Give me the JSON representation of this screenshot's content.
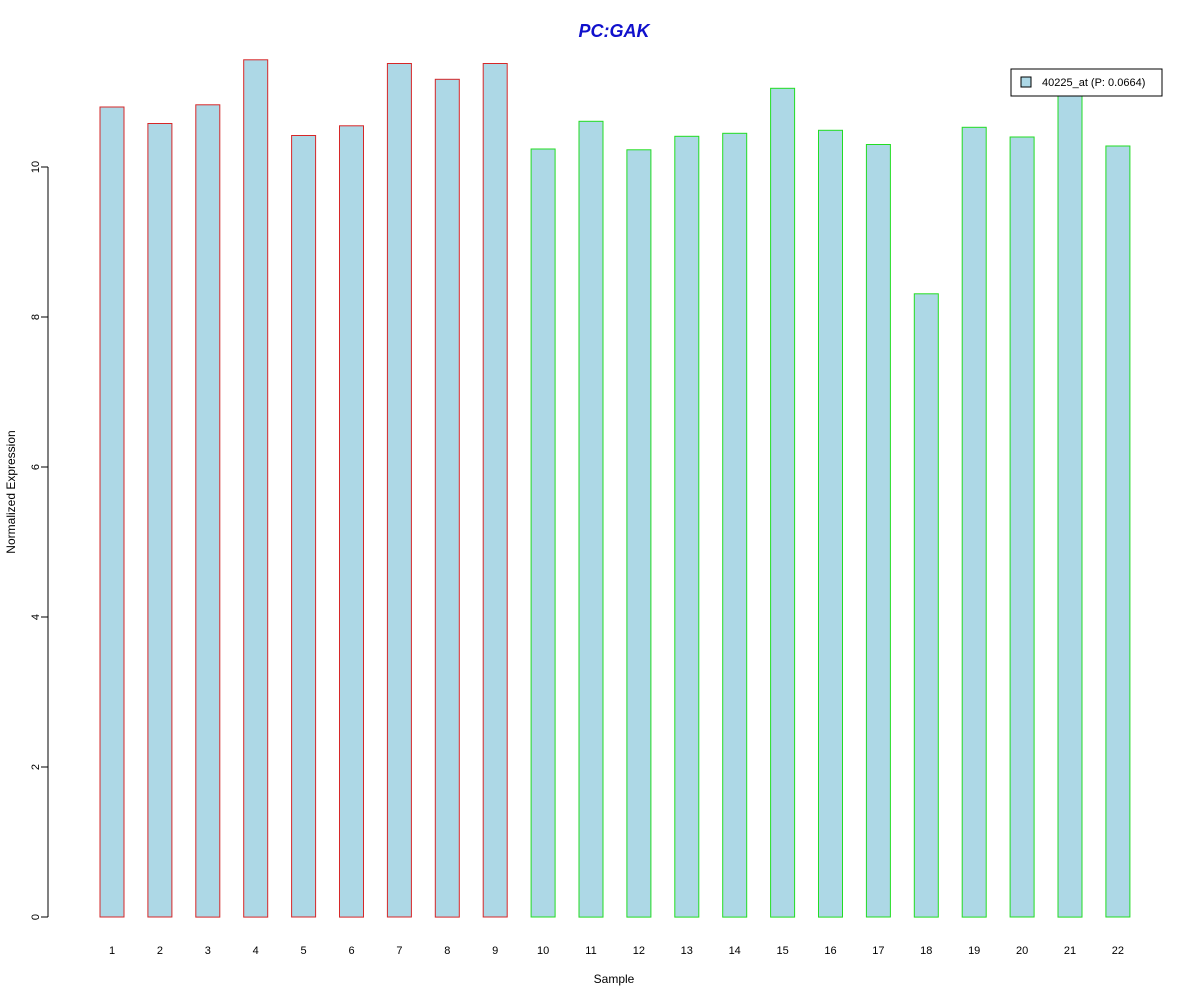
{
  "chart_data": {
    "type": "bar",
    "title": "PC:GAK",
    "xlabel": "Sample",
    "ylabel": "Normalized Expression",
    "ylim": [
      0,
      11.5
    ],
    "yticks": [
      0,
      2,
      4,
      6,
      8,
      10
    ],
    "categories": [
      "1",
      "2",
      "3",
      "4",
      "5",
      "6",
      "7",
      "8",
      "9",
      "10",
      "11",
      "12",
      "13",
      "14",
      "15",
      "16",
      "17",
      "18",
      "19",
      "20",
      "21",
      "22"
    ],
    "series": [
      {
        "name": "40225_at (P: 0.0664)",
        "values": [
          10.8,
          10.58,
          10.83,
          11.43,
          10.42,
          10.55,
          11.38,
          11.17,
          11.38,
          10.24,
          10.61,
          10.23,
          10.41,
          10.45,
          11.05,
          10.49,
          10.3,
          8.31,
          10.53,
          10.4,
          10.95,
          10.28
        ]
      }
    ],
    "group_border_colors": [
      "#d62728",
      "#d62728",
      "#d62728",
      "#d62728",
      "#d62728",
      "#d62728",
      "#d62728",
      "#d62728",
      "#d62728",
      "#22dd22",
      "#22dd22",
      "#22dd22",
      "#22dd22",
      "#22dd22",
      "#22dd22",
      "#22dd22",
      "#22dd22",
      "#22dd22",
      "#22dd22",
      "#22dd22",
      "#22dd22",
      "#22dd22"
    ],
    "bar_fill_color": "#add8e6",
    "title_color": "#1010cc",
    "grid": false,
    "legend_position": "top-right"
  }
}
